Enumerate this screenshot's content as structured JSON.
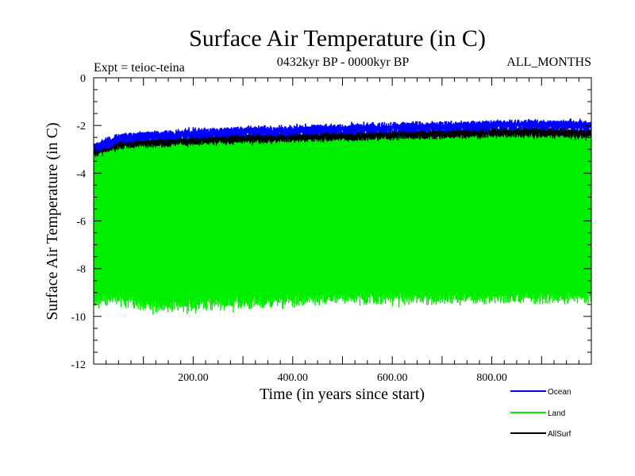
{
  "chart_data": {
    "type": "line",
    "title": "Surface Air Temperature (in C)",
    "subtitle": "0432kyr BP - 0000kyr BP",
    "annotation_left": "Expt = teioc-teina",
    "annotation_right": "ALL_MONTHS",
    "xlabel": "Time (in years since start)",
    "ylabel": "Surface Air Temperature (in C)",
    "xlim": [
      0,
      1000
    ],
    "ylim": [
      -12,
      0
    ],
    "x_ticks": [
      200,
      400,
      600,
      800
    ],
    "x_tick_labels": [
      "200.00",
      "400.00",
      "600.00",
      "800.00"
    ],
    "y_ticks": [
      0,
      -2,
      -4,
      -6,
      -8,
      -10,
      -12
    ],
    "y_tick_labels": [
      "0",
      "-2",
      "-4",
      "-6",
      "-8",
      "-10",
      "-12"
    ],
    "legend_position": "bottom-right",
    "series": [
      {
        "name": "Ocean",
        "color": "#0000ff",
        "description": "annual-cycle maximum band; slowly warming from about -2.6 to -1.9",
        "x": [
          0,
          50,
          100,
          200,
          300,
          400,
          500,
          600,
          700,
          800,
          900,
          1000
        ],
        "values": [
          -2.8,
          -2.4,
          -2.3,
          -2.2,
          -2.1,
          -2.05,
          -2.0,
          -1.95,
          -1.9,
          -1.85,
          -1.8,
          -1.85
        ]
      },
      {
        "name": "Land",
        "color": "#00ee00",
        "description": "seasonal cycle fills band from upper envelope to lower envelope",
        "x": [
          0,
          50,
          100,
          200,
          300,
          400,
          500,
          600,
          700,
          800,
          900,
          1000
        ],
        "upper": [
          -3.0,
          -2.7,
          -2.6,
          -2.55,
          -2.5,
          -2.45,
          -2.4,
          -2.35,
          -2.3,
          -2.3,
          -2.25,
          -2.3
        ],
        "lower": [
          -9.5,
          -9.3,
          -9.6,
          -9.6,
          -9.5,
          -9.4,
          -9.3,
          -9.3,
          -9.3,
          -9.3,
          -9.3,
          -9.2
        ]
      },
      {
        "name": "AllSurf",
        "color": "#000000",
        "description": "global mean maximum; slightly below Ocean",
        "x": [
          0,
          50,
          100,
          200,
          300,
          400,
          500,
          600,
          700,
          800,
          900,
          1000
        ],
        "values": [
          -2.9,
          -2.6,
          -2.5,
          -2.45,
          -2.35,
          -2.3,
          -2.25,
          -2.2,
          -2.15,
          -2.1,
          -2.1,
          -2.15
        ]
      }
    ]
  }
}
